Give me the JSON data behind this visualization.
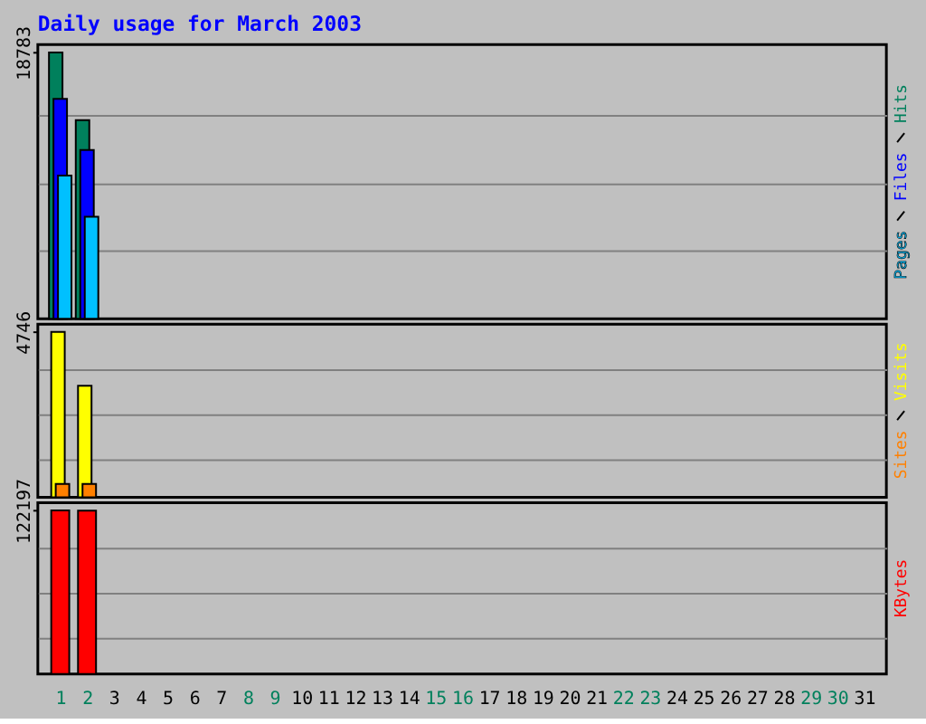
{
  "chart_data": [
    {
      "type": "bar",
      "title": "Daily usage for March 2003",
      "x": [
        "2003-03-01",
        "2003-03-02"
      ],
      "series": [
        {
          "name": "Hits",
          "color": "#00805c",
          "values": [
            18783,
            14000
          ]
        },
        {
          "name": "Files",
          "color": "#0000ff",
          "values": [
            15500,
            11900
          ]
        },
        {
          "name": "Pages",
          "color": "#00c0ff",
          "values": [
            10100,
            7200
          ]
        }
      ],
      "xlim": [
        "2003-02-28T12:00",
        "2003-03-31T12:00"
      ],
      "ylim": [
        0,
        19330
      ],
      "yticks": [
        {
          "value": 4800,
          "label": null
        },
        {
          "value": 9600,
          "label": null
        },
        {
          "value": 14400,
          "label": null
        },
        18783
      ],
      "grid": "y",
      "legend": "right",
      "tick_labels": "y"
    },
    {
      "type": "bar",
      "x": [
        "2003-03-01",
        "2003-03-02"
      ],
      "series": [
        {
          "name": "Visits",
          "color": "#ffff00",
          "values": [
            4746,
            3200
          ]
        },
        {
          "name": "Sites",
          "color": "#ff8000",
          "values": [
            380,
            380
          ]
        }
      ],
      "xlim": [
        "2003-02-28T12:00",
        "2003-03-31T12:00"
      ],
      "ylim": [
        0,
        4970
      ],
      "yticks": [
        {
          "value": 1100,
          "label": null
        },
        {
          "value": 2400,
          "label": null
        },
        {
          "value": 3700,
          "label": null
        },
        4746
      ],
      "grid": "y",
      "legend": "right",
      "tick_labels": "y"
    },
    {
      "type": "bar",
      "x": [
        "2003-03-01",
        "2003-03-02"
      ],
      "series": [
        {
          "name": "KBytes",
          "color": "#ff0000",
          "values": [
            122197,
            122000
          ]
        }
      ],
      "xlim": [
        "2003-02-28T12:00",
        "2003-03-31T12:00"
      ],
      "xticks": [
        {
          "value": "2003-03-01",
          "label": "1"
        },
        {
          "value": "2003-03-02",
          "label": "2"
        },
        {
          "value": "2003-03-03",
          "label": "3"
        },
        {
          "value": "2003-03-04",
          "label": "4"
        },
        {
          "value": "2003-03-05",
          "label": "5"
        },
        {
          "value": "2003-03-06",
          "label": "6"
        },
        {
          "value": "2003-03-07",
          "label": "7"
        },
        {
          "value": "2003-03-08",
          "label": "8"
        },
        {
          "value": "2003-03-09",
          "label": "9"
        },
        {
          "value": "2003-03-10",
          "label": "10"
        },
        {
          "value": "2003-03-11",
          "label": "11"
        },
        {
          "value": "2003-03-12",
          "label": "12"
        },
        {
          "value": "2003-03-13",
          "label": "13"
        },
        {
          "value": "2003-03-14",
          "label": "14"
        },
        {
          "value": "2003-03-15",
          "label": "15"
        },
        {
          "value": "2003-03-16",
          "label": "16"
        },
        {
          "value": "2003-03-17",
          "label": "17"
        },
        {
          "value": "2003-03-18",
          "label": "18"
        },
        {
          "value": "2003-03-19",
          "label": "19"
        },
        {
          "value": "2003-03-20",
          "label": "20"
        },
        {
          "value": "2003-03-21",
          "label": "21"
        },
        {
          "value": "2003-03-22",
          "label": "22"
        },
        {
          "value": "2003-03-23",
          "label": "23"
        },
        {
          "value": "2003-03-24",
          "label": "24"
        },
        {
          "value": "2003-03-25",
          "label": "25"
        },
        {
          "value": "2003-03-26",
          "label": "26"
        },
        {
          "value": "2003-03-27",
          "label": "27"
        },
        {
          "value": "2003-03-28",
          "label": "28"
        },
        {
          "value": "2003-03-29",
          "label": "29"
        },
        {
          "value": "2003-03-30",
          "label": "30"
        },
        {
          "value": "2003-03-31",
          "label": "31"
        }
      ],
      "ylim": [
        0,
        128000
      ],
      "yticks": [
        {
          "value": 26500,
          "label": null
        },
        {
          "value": 60200,
          "label": null
        },
        {
          "value": 93900,
          "label": null
        },
        122197
      ],
      "grid": "y",
      "legend": "right"
    }
  ]
}
